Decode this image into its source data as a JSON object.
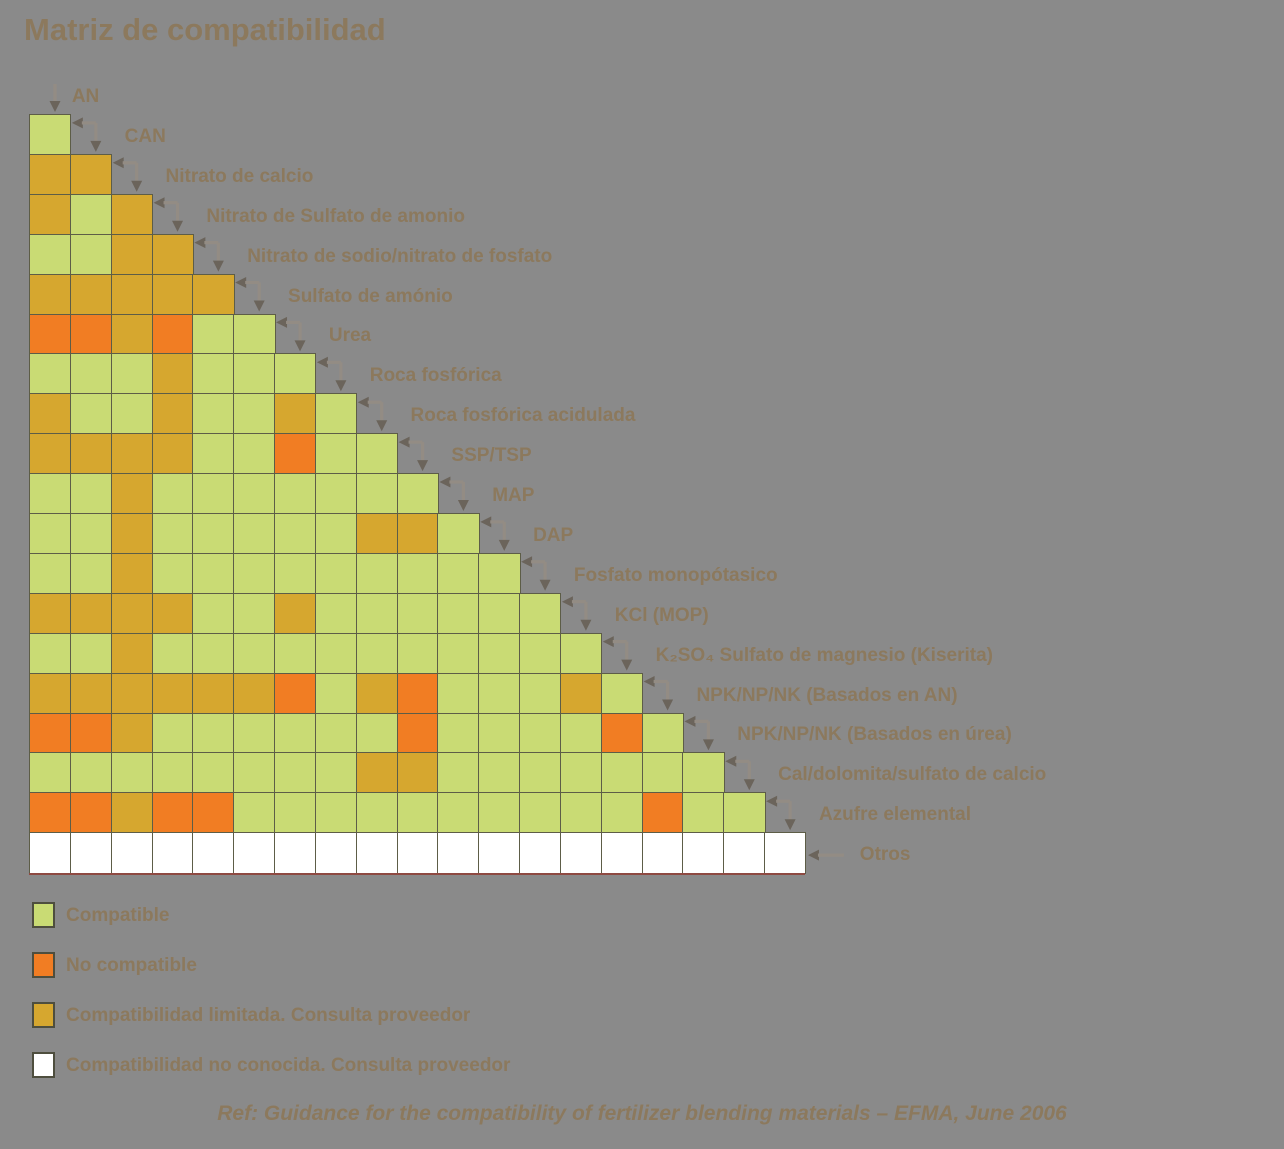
{
  "title": "Matriz de compatibilidad",
  "footer": "Ref: Guidance for the compatibility of fertilizer blending materials – EFMA, June 2006",
  "style": {
    "background": "#8a8a8a",
    "text_color": "#8c795d",
    "grid_border": "#5d5d47"
  },
  "chart_data": {
    "type": "heatmap",
    "title": "Matriz de compatibilidad",
    "layout": "lower-triangular staircase matrix, 20 materials, labels along diagonal with arrows",
    "materials": [
      "AN",
      "CAN",
      "Nitrato de calcio",
      "Nitrato de Sulfato de amonio",
      "Nitrato de sodio/nitrato de fosfato",
      "Sulfato de amónio",
      "Urea",
      "Roca fosfórica",
      "Roca fosfórica acidulada",
      "SSP/TSP",
      "MAP",
      "DAP",
      "Fosfato monopótasico",
      "KCl (MOP)",
      "K₂SO₄ Sulfato de magnesio (Kiserita)",
      "NPK/NP/NK (Basados en AN)",
      "NPK/NP/NK (Basados en úrea)",
      "Cal/dolomita/sulfato de calcio",
      "Azufre elemental",
      "Otros"
    ],
    "cell_codes": {
      "G": "compatible",
      "O": "no compatible",
      "Y": "compatibilidad limitada",
      "W": "compatibilidad no conocida"
    },
    "colors": {
      "G": "#c9db74",
      "O": "#f17d23",
      "Y": "#d6a72f",
      "W": "#ffffff"
    },
    "rows": [
      {
        "material": "CAN",
        "cells": "G"
      },
      {
        "material": "Nitrato de calcio",
        "cells": "YY"
      },
      {
        "material": "Nitrato de Sulfato de amonio",
        "cells": "YGY"
      },
      {
        "material": "Nitrato de sodio/nitrato de fosfato",
        "cells": "GGYY"
      },
      {
        "material": "Sulfato de amónio",
        "cells": "YYYYY"
      },
      {
        "material": "Urea",
        "cells": "OOYOGG"
      },
      {
        "material": "Roca fosfórica",
        "cells": "GGGYGGG"
      },
      {
        "material": "Roca fosfórica acidulada",
        "cells": "YGGYGGYG"
      },
      {
        "material": "SSP/TSP",
        "cells": "YYYYGGOGG"
      },
      {
        "material": "MAP",
        "cells": "GGYGGGGGGG"
      },
      {
        "material": "DAP",
        "cells": "GGYGGGGGYYG"
      },
      {
        "material": "Fosfato monopótasico",
        "cells": "GGYGGGGGGGGG"
      },
      {
        "material": "KCl (MOP)",
        "cells": "YYYYGGYGGGGGG"
      },
      {
        "material": "K₂SO₄ Sulfato de magnesio (Kiserita)",
        "cells": "GGYGGGGGGGGGGG"
      },
      {
        "material": "NPK/NP/NK (Basados en AN)",
        "cells": "YYYYYYOGYOGGGYG"
      },
      {
        "material": "NPK/NP/NK (Basados en úrea)",
        "cells": "OOYGGGGGGOGGGGOG"
      },
      {
        "material": "Cal/dolomita/sulfato de calcio",
        "cells": "GGGGGGGGYYGGGGGGG"
      },
      {
        "material": "Azufre elemental",
        "cells": "OOYOOGGGGGGGGGGOGG"
      },
      {
        "material": "Otros",
        "cells": "WWWWWWWWWWWWWWWWWWW"
      }
    ],
    "legend": [
      {
        "code": "G",
        "label": "Compatible",
        "color": "#c9db74"
      },
      {
        "code": "O",
        "label": "No compatible",
        "color": "#f17d23"
      },
      {
        "code": "Y",
        "label": "Compatibilidad limitada. Consulta proveedor",
        "color": "#d6a72f"
      },
      {
        "code": "W",
        "label": "Compatibilidad no conocida. Consulta proveedor",
        "color": "#ffffff"
      }
    ],
    "legend_position": "bottom-left"
  }
}
